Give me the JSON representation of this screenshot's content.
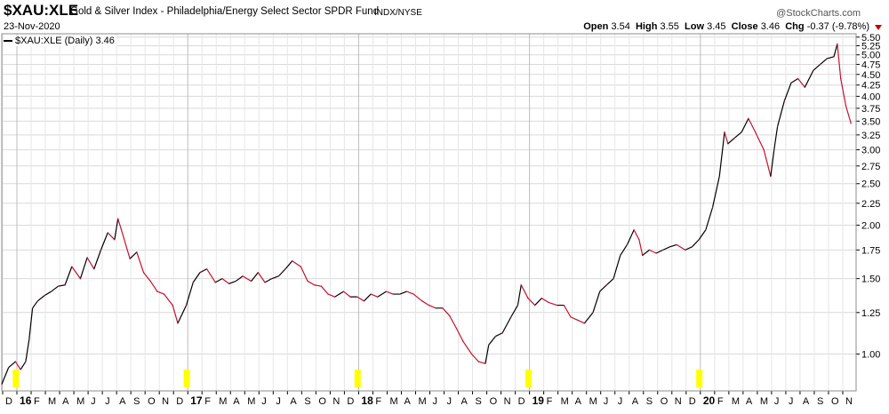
{
  "header": {
    "symbol": "$XAU:XLE",
    "name": "Gold & Silver Index - Philadelphia/Energy Select Sector SPDR Fund",
    "exchange": "INDX/NYSE",
    "brand": "@StockCharts.com",
    "date": "23-Nov-2020",
    "open_label": "Open",
    "open": "3.54",
    "high_label": "High",
    "high": "3.55",
    "low_label": "Low",
    "low": "3.45",
    "close_label": "Close",
    "close": "3.46",
    "chg_label": "Chg",
    "chg": "-0.37 (-9.78%)"
  },
  "legend": {
    "label": "$XAU:XLE (Daily) 3.46"
  },
  "colors": {
    "line_up": "#000000",
    "line_down": "#c8102e",
    "grid": "#d9d9d9",
    "marker": "#ffff00",
    "down_arrow": "#c00000"
  },
  "chart_data": {
    "type": "line",
    "title": "$XAU:XLE",
    "series": [
      {
        "name": "$XAU:XLE (Daily)",
        "scale": "log",
        "points": [
          [
            2015.92,
            0.85
          ],
          [
            2015.96,
            0.93
          ],
          [
            2016.0,
            0.96
          ],
          [
            2016.03,
            0.92
          ],
          [
            2016.06,
            0.96
          ],
          [
            2016.08,
            1.08
          ],
          [
            2016.1,
            1.28
          ],
          [
            2016.13,
            1.33
          ],
          [
            2016.17,
            1.37
          ],
          [
            2016.21,
            1.4
          ],
          [
            2016.25,
            1.44
          ],
          [
            2016.29,
            1.45
          ],
          [
            2016.33,
            1.6
          ],
          [
            2016.38,
            1.5
          ],
          [
            2016.42,
            1.68
          ],
          [
            2016.46,
            1.58
          ],
          [
            2016.5,
            1.75
          ],
          [
            2016.54,
            1.92
          ],
          [
            2016.58,
            1.85
          ],
          [
            2016.6,
            2.07
          ],
          [
            2016.62,
            1.95
          ],
          [
            2016.67,
            1.67
          ],
          [
            2016.71,
            1.73
          ],
          [
            2016.75,
            1.55
          ],
          [
            2016.79,
            1.48
          ],
          [
            2016.83,
            1.4
          ],
          [
            2016.87,
            1.38
          ],
          [
            2016.92,
            1.3
          ],
          [
            2016.95,
            1.18
          ],
          [
            2017.0,
            1.3
          ],
          [
            2017.04,
            1.47
          ],
          [
            2017.08,
            1.55
          ],
          [
            2017.12,
            1.58
          ],
          [
            2017.17,
            1.47
          ],
          [
            2017.21,
            1.5
          ],
          [
            2017.25,
            1.46
          ],
          [
            2017.29,
            1.48
          ],
          [
            2017.33,
            1.52
          ],
          [
            2017.38,
            1.48
          ],
          [
            2017.42,
            1.55
          ],
          [
            2017.46,
            1.47
          ],
          [
            2017.5,
            1.5
          ],
          [
            2017.54,
            1.52
          ],
          [
            2017.58,
            1.58
          ],
          [
            2017.62,
            1.65
          ],
          [
            2017.67,
            1.6
          ],
          [
            2017.71,
            1.48
          ],
          [
            2017.75,
            1.45
          ],
          [
            2017.79,
            1.44
          ],
          [
            2017.83,
            1.38
          ],
          [
            2017.87,
            1.36
          ],
          [
            2017.92,
            1.4
          ],
          [
            2017.96,
            1.36
          ],
          [
            2018.0,
            1.36
          ],
          [
            2018.04,
            1.33
          ],
          [
            2018.08,
            1.38
          ],
          [
            2018.12,
            1.36
          ],
          [
            2018.17,
            1.4
          ],
          [
            2018.21,
            1.38
          ],
          [
            2018.25,
            1.38
          ],
          [
            2018.29,
            1.4
          ],
          [
            2018.33,
            1.38
          ],
          [
            2018.38,
            1.33
          ],
          [
            2018.42,
            1.3
          ],
          [
            2018.46,
            1.28
          ],
          [
            2018.5,
            1.28
          ],
          [
            2018.54,
            1.23
          ],
          [
            2018.58,
            1.15
          ],
          [
            2018.62,
            1.07
          ],
          [
            2018.67,
            1.0
          ],
          [
            2018.71,
            0.96
          ],
          [
            2018.75,
            0.95
          ],
          [
            2018.77,
            1.05
          ],
          [
            2018.81,
            1.1
          ],
          [
            2018.85,
            1.12
          ],
          [
            2018.9,
            1.22
          ],
          [
            2018.94,
            1.3
          ],
          [
            2018.96,
            1.45
          ],
          [
            2019.0,
            1.35
          ],
          [
            2019.04,
            1.3
          ],
          [
            2019.08,
            1.35
          ],
          [
            2019.12,
            1.32
          ],
          [
            2019.17,
            1.3
          ],
          [
            2019.21,
            1.3
          ],
          [
            2019.25,
            1.22
          ],
          [
            2019.29,
            1.2
          ],
          [
            2019.33,
            1.18
          ],
          [
            2019.38,
            1.25
          ],
          [
            2019.42,
            1.4
          ],
          [
            2019.46,
            1.45
          ],
          [
            2019.5,
            1.5
          ],
          [
            2019.54,
            1.7
          ],
          [
            2019.58,
            1.8
          ],
          [
            2019.62,
            1.95
          ],
          [
            2019.65,
            1.85
          ],
          [
            2019.67,
            1.7
          ],
          [
            2019.71,
            1.75
          ],
          [
            2019.75,
            1.72
          ],
          [
            2019.79,
            1.75
          ],
          [
            2019.83,
            1.78
          ],
          [
            2019.87,
            1.8
          ],
          [
            2019.92,
            1.75
          ],
          [
            2019.96,
            1.78
          ],
          [
            2020.0,
            1.85
          ],
          [
            2020.04,
            1.95
          ],
          [
            2020.08,
            2.2
          ],
          [
            2020.12,
            2.6
          ],
          [
            2020.15,
            3.3
          ],
          [
            2020.17,
            3.1
          ],
          [
            2020.21,
            3.2
          ],
          [
            2020.25,
            3.3
          ],
          [
            2020.29,
            3.55
          ],
          [
            2020.33,
            3.3
          ],
          [
            2020.38,
            3.0
          ],
          [
            2020.42,
            2.6
          ],
          [
            2020.44,
            3.0
          ],
          [
            2020.46,
            3.4
          ],
          [
            2020.5,
            3.9
          ],
          [
            2020.54,
            4.3
          ],
          [
            2020.58,
            4.4
          ],
          [
            2020.62,
            4.2
          ],
          [
            2020.67,
            4.6
          ],
          [
            2020.71,
            4.75
          ],
          [
            2020.75,
            4.9
          ],
          [
            2020.79,
            4.95
          ],
          [
            2020.81,
            5.3
          ],
          [
            2020.83,
            4.4
          ],
          [
            2020.86,
            3.8
          ],
          [
            2020.89,
            3.46
          ]
        ]
      }
    ],
    "x_axis": {
      "range": [
        2015.92,
        2020.92
      ],
      "month_labels": [
        "D",
        "16",
        "F",
        "M",
        "A",
        "M",
        "J",
        "J",
        "A",
        "S",
        "O",
        "N",
        "D",
        "17",
        "F",
        "M",
        "A",
        "M",
        "J",
        "J",
        "A",
        "S",
        "O",
        "N",
        "D",
        "18",
        "F",
        "M",
        "A",
        "M",
        "J",
        "J",
        "A",
        "S",
        "O",
        "N",
        "D",
        "19",
        "F",
        "M",
        "A",
        "M",
        "J",
        "J",
        "A",
        "S",
        "O",
        "N",
        "D",
        "20",
        "F",
        "M",
        "A",
        "M",
        "J",
        "J",
        "A",
        "S",
        "O",
        "N"
      ],
      "year_labels": [
        "16",
        "17",
        "18",
        "19",
        "20"
      ]
    },
    "y_axis": {
      "scale": "log",
      "range": [
        0.82,
        5.6
      ],
      "ticks": [
        5.5,
        5.25,
        5.0,
        4.75,
        4.5,
        4.25,
        4.0,
        3.75,
        3.5,
        3.25,
        3.0,
        2.75,
        2.5,
        2.25,
        2.0,
        1.75,
        1.5,
        1.25,
        1.0
      ],
      "tick_labels": [
        "5.50",
        "5.25",
        "5.00",
        "4.75",
        "4.50",
        "4.25",
        "4.00",
        "3.75",
        "3.50",
        "3.25",
        "3.00",
        "2.75",
        "2.50",
        "2.25",
        "2.00",
        "1.75",
        "1.50",
        "1.25",
        "1.00"
      ]
    },
    "year_markers": [
      2016.0,
      2017.0,
      2018.0,
      2019.0,
      2020.0
    ],
    "grid": true,
    "legend_position": "top-left"
  }
}
